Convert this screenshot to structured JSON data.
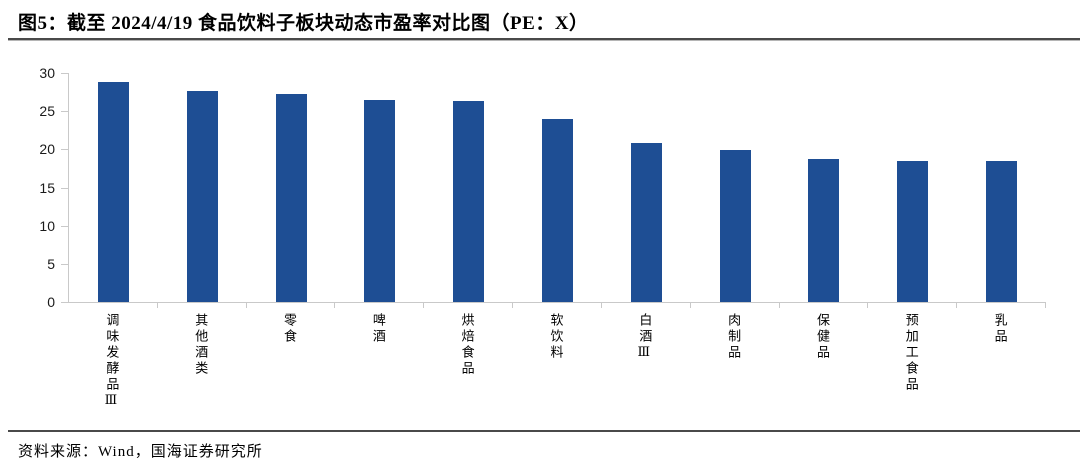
{
  "header": {
    "title": "图5：截至 2024/4/19 食品饮料子板块动态市盈率对比图（PE：X）"
  },
  "footer": {
    "source": "资料来源：Wind，国海证券研究所"
  },
  "chart_data": {
    "type": "bar",
    "title": "图5：截至 2024/4/19 食品饮料子板块动态市盈率对比图（PE：X）",
    "categories": [
      "调味发酵品Ⅲ",
      "其他酒类",
      "零食",
      "啤酒",
      "烘焙食品",
      "软饮料",
      "白酒Ⅲ",
      "肉制品",
      "保健品",
      "预加工食品",
      "乳品"
    ],
    "values": [
      28.8,
      27.7,
      27.2,
      26.5,
      26.3,
      24.0,
      20.8,
      19.9,
      18.7,
      18.5,
      18.5
    ],
    "xlabel": "",
    "ylabel": "",
    "ylim": [
      0,
      30
    ],
    "yticks": [
      0,
      5,
      10,
      15,
      20,
      25,
      30
    ],
    "grid": false,
    "legend": "none",
    "bar_color": "#1e4e94",
    "axis_color": "#c9c9c9"
  }
}
